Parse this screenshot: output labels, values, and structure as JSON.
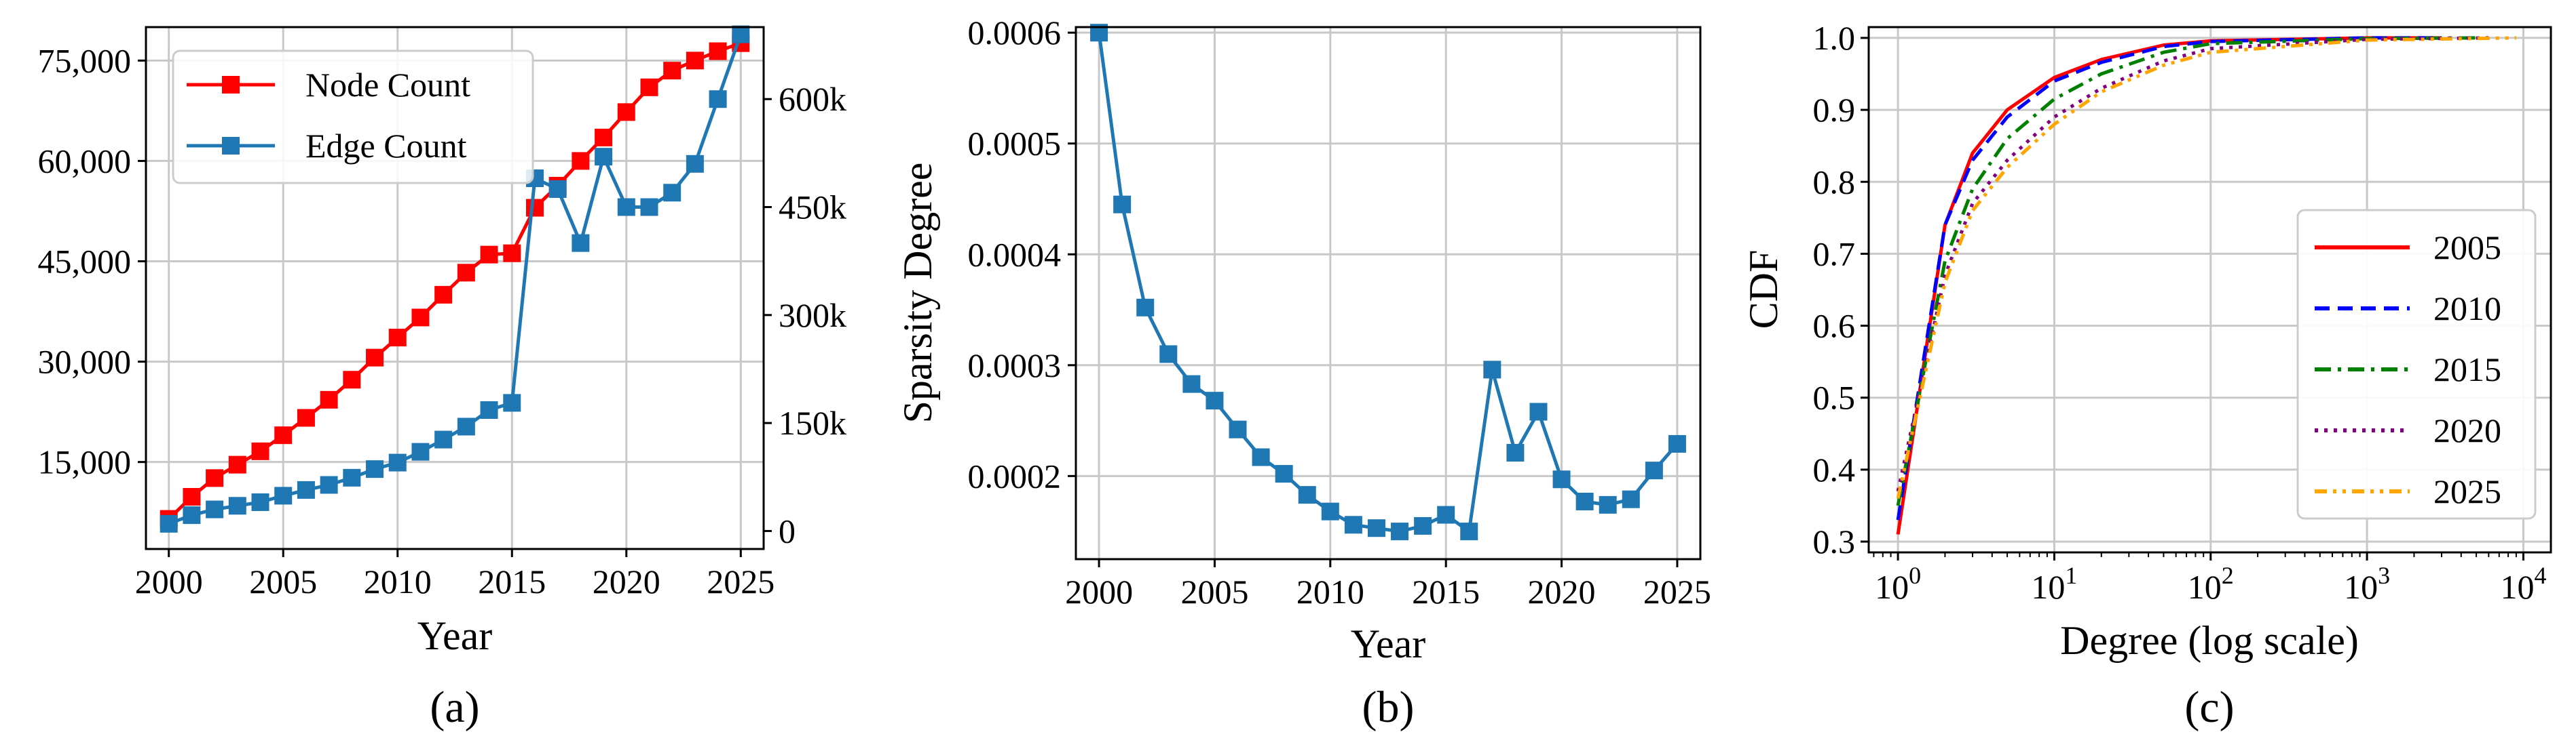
{
  "chart_data": [
    {
      "type": "line",
      "caption": "(a)",
      "xlabel": "Year",
      "xlim": [
        1999,
        2026
      ],
      "xticks": [
        2000,
        2005,
        2010,
        2015,
        2020,
        2025
      ],
      "left_axis": {
        "ylim": [
          2000,
          80000
        ],
        "ticks": [
          15000,
          30000,
          45000,
          60000,
          75000
        ],
        "tick_labels": [
          "15,000",
          "30,000",
          "45,000",
          "60,000",
          "75,000"
        ]
      },
      "right_axis": {
        "ylim": [
          -25000,
          700000
        ],
        "ticks": [
          0,
          150000,
          300000,
          450000,
          600000
        ],
        "tick_labels": [
          "0",
          "150k",
          "300k",
          "450k",
          "600k"
        ]
      },
      "legend_position": "top-left",
      "x": [
        2000,
        2001,
        2002,
        2003,
        2004,
        2005,
        2006,
        2007,
        2008,
        2009,
        2010,
        2011,
        2012,
        2013,
        2014,
        2015,
        2016,
        2017,
        2018,
        2019,
        2020,
        2021,
        2022,
        2023,
        2024,
        2025
      ],
      "series": [
        {
          "name": "Node Count",
          "axis": "left",
          "color": "#ff0000",
          "marker": "square",
          "values": [
            6500,
            9800,
            12600,
            14600,
            16600,
            19000,
            21600,
            24300,
            27300,
            30600,
            33600,
            36600,
            40000,
            43300,
            46000,
            46200,
            53000,
            56300,
            60000,
            63500,
            67300,
            71000,
            73500,
            75000,
            76400,
            77600
          ]
        },
        {
          "name": "Edge Count",
          "axis": "right",
          "color": "#1f77b4",
          "marker": "square",
          "values": [
            10000,
            22000,
            30000,
            35000,
            40000,
            49000,
            57000,
            64000,
            74000,
            86000,
            95000,
            110000,
            127000,
            145000,
            168000,
            178000,
            490000,
            475000,
            400000,
            520000,
            450000,
            450000,
            470000,
            510000,
            600000,
            690000
          ]
        }
      ]
    },
    {
      "type": "line",
      "caption": "(b)",
      "xlabel": "Year",
      "ylabel": "Sparsity Degree",
      "xlim": [
        1999,
        2026
      ],
      "xticks": [
        2000,
        2005,
        2010,
        2015,
        2020,
        2025
      ],
      "ylim": [
        0.000125,
        0.000605
      ],
      "yticks": [
        0.0002,
        0.0003,
        0.0004,
        0.0005,
        0.0006
      ],
      "ytick_labels": [
        "0.0002",
        "0.0003",
        "0.0004",
        "0.0005",
        "0.0006"
      ],
      "x": [
        2000,
        2001,
        2002,
        2003,
        2004,
        2005,
        2006,
        2007,
        2008,
        2009,
        2010,
        2011,
        2012,
        2013,
        2014,
        2015,
        2016,
        2017,
        2018,
        2019,
        2020,
        2021,
        2022,
        2023,
        2024,
        2025
      ],
      "series": [
        {
          "color": "#1f77b4",
          "marker": "square",
          "values": [
            0.0006,
            0.000445,
            0.000352,
            0.00031,
            0.000283,
            0.000268,
            0.000242,
            0.000217,
            0.000202,
            0.000183,
            0.000168,
            0.000156,
            0.000153,
            0.00015,
            0.000155,
            0.000165,
            0.00015,
            0.000296,
            0.000221,
            0.000258,
            0.000197,
            0.000177,
            0.000174,
            0.000179,
            0.000205,
            0.000229
          ]
        }
      ]
    },
    {
      "type": "line",
      "caption": "(c)",
      "xlabel": "Degree (log scale)",
      "ylabel": "CDF",
      "xscale": "log",
      "xlim": [
        0.65,
        15000
      ],
      "xticks": [
        1,
        10,
        100,
        1000,
        10000
      ],
      "xtick_base": "10",
      "xtick_exponents": [
        "0",
        "1",
        "2",
        "3",
        "4"
      ],
      "ylim": [
        0.285,
        1.015
      ],
      "yticks": [
        0.3,
        0.4,
        0.5,
        0.6,
        0.7,
        0.8,
        0.9,
        1.0
      ],
      "ytick_labels": [
        "0.3",
        "0.4",
        "0.5",
        "0.6",
        "0.7",
        "0.8",
        "0.9",
        "1.0"
      ],
      "legend_position": "bottom-right",
      "series": [
        {
          "name": "2005",
          "color": "#ff0000",
          "dash": "solid",
          "x": [
            1,
            2,
            3,
            5,
            10,
            20,
            50,
            100,
            1000,
            3000
          ],
          "values": [
            0.31,
            0.74,
            0.84,
            0.9,
            0.945,
            0.97,
            0.99,
            0.996,
            1.0,
            1.0
          ]
        },
        {
          "name": "2010",
          "color": "#0000ff",
          "dash": "dashed",
          "x": [
            1,
            2,
            3,
            5,
            10,
            20,
            50,
            100,
            1000,
            3000
          ],
          "values": [
            0.33,
            0.74,
            0.83,
            0.89,
            0.94,
            0.966,
            0.988,
            0.995,
            1.0,
            1.0
          ]
        },
        {
          "name": "2015",
          "color": "#008000",
          "dash": "dashdot",
          "x": [
            1,
            2,
            3,
            5,
            10,
            20,
            50,
            100,
            1000,
            5000
          ],
          "values": [
            0.35,
            0.69,
            0.79,
            0.86,
            0.915,
            0.95,
            0.98,
            0.992,
            0.999,
            1.0
          ]
        },
        {
          "name": "2020",
          "color": "#800080",
          "dash": "dotted",
          "x": [
            1,
            2,
            3,
            5,
            10,
            20,
            50,
            100,
            1000,
            6000
          ],
          "values": [
            0.37,
            0.67,
            0.77,
            0.83,
            0.89,
            0.93,
            0.968,
            0.985,
            0.998,
            1.0
          ]
        },
        {
          "name": "2025",
          "color": "#ffa500",
          "dash": "dashdotdot",
          "x": [
            1,
            2,
            3,
            5,
            10,
            20,
            50,
            100,
            1000,
            9000
          ],
          "values": [
            0.36,
            0.66,
            0.76,
            0.82,
            0.88,
            0.925,
            0.962,
            0.98,
            0.997,
            1.0
          ]
        }
      ]
    }
  ]
}
